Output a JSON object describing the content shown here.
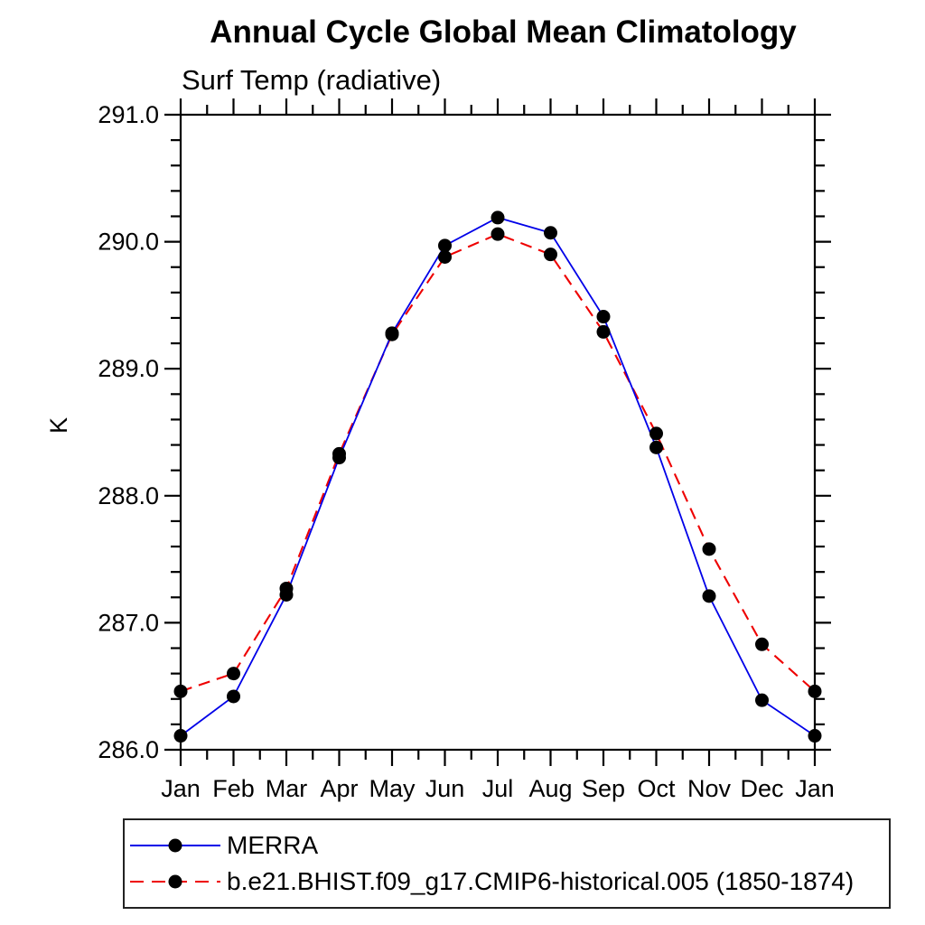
{
  "title": "Annual Cycle Global Mean Climatology",
  "subtitle": "Surf Temp (radiative)",
  "ylabel": "K",
  "chart_data": {
    "type": "line",
    "categories": [
      "Jan",
      "Feb",
      "Mar",
      "Apr",
      "May",
      "Jun",
      "Jul",
      "Aug",
      "Sep",
      "Oct",
      "Nov",
      "Dec",
      "Jan"
    ],
    "ylim": [
      286.0,
      291.0
    ],
    "ytick_step": 1.0,
    "ytick_minor_step": 0.2,
    "ytick_labels": [
      "286.0",
      "287.0",
      "288.0",
      "289.0",
      "290.0",
      "291.0"
    ],
    "grid": false,
    "legend_position": "bottom",
    "marker_color": "#000000",
    "axis_color": "#000000",
    "series": [
      {
        "name": "MERRA",
        "color": "#0000e8",
        "style": "solid",
        "values": [
          286.11,
          286.42,
          287.22,
          288.3,
          289.28,
          289.97,
          290.19,
          290.07,
          289.41,
          288.38,
          287.21,
          286.39,
          286.11
        ]
      },
      {
        "name": "b.e21.BHIST.f09_g17.CMIP6-historical.005 (1850-1874)",
        "color": "#ee0000",
        "style": "dashed",
        "values": [
          286.46,
          286.6,
          287.27,
          288.33,
          289.27,
          289.88,
          290.06,
          289.9,
          289.29,
          288.49,
          287.58,
          286.83,
          286.46
        ]
      }
    ]
  }
}
